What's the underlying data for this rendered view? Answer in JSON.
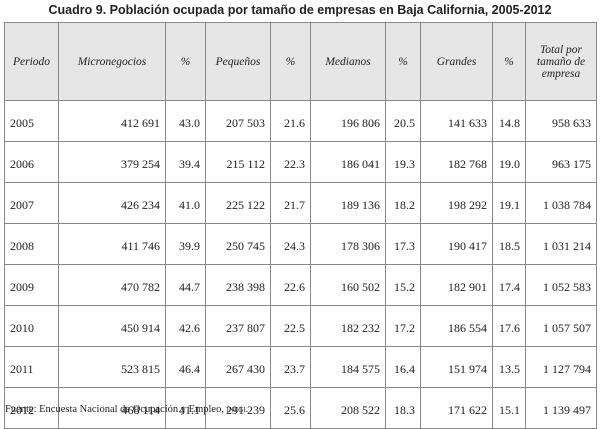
{
  "title": "Cuadro 9. Población ocupada por tamaño de empresas en Baja California, 2005-2012",
  "table": {
    "header": [
      "Periodo",
      "Micronegocios",
      "%",
      "Pequeños",
      "%",
      "Medianos",
      "%",
      "Grandes",
      "%",
      "Total por tamaño de empresa"
    ],
    "rows": [
      [
        "2005",
        "412 691",
        "43.0",
        "207 503",
        "21.6",
        "196 806",
        "20.5",
        "141 633",
        "14.8",
        "958 633"
      ],
      [
        "2006",
        "379 254",
        "39.4",
        "215 112",
        "22.3",
        "186 041",
        "19.3",
        "182 768",
        "19.0",
        "963 175"
      ],
      [
        "2007",
        "426 234",
        "41.0",
        "225 122",
        "21.7",
        "189 136",
        "18.2",
        "198 292",
        "19.1",
        "1 038 784"
      ],
      [
        "2008",
        "411 746",
        "39.9",
        "250 745",
        "24.3",
        "178 306",
        "17.3",
        "190 417",
        "18.5",
        "1 031 214"
      ],
      [
        "2009",
        "470 782",
        "44.7",
        "238 398",
        "22.6",
        "160 502",
        "15.2",
        "182 901",
        "17.4",
        "1 052 583"
      ],
      [
        "2010",
        "450 914",
        "42.6",
        "237 807",
        "22.5",
        "182 232",
        "17.2",
        "186 554",
        "17.6",
        "1 057 507"
      ],
      [
        "2011",
        "523 815",
        "46.4",
        "267 430",
        "23.7",
        "184 575",
        "16.4",
        "151 974",
        "13.5",
        "1 127 794"
      ],
      [
        "2012",
        "468 114",
        "41.1",
        "291 239",
        "25.6",
        "208 522",
        "18.3",
        "171 622",
        "15.1",
        "1 139 497"
      ]
    ]
  },
  "footer": {
    "source_label": "Fuente: Encuesta Nacional de Ocupación y Empleo,",
    "source_name": "inegi."
  }
}
